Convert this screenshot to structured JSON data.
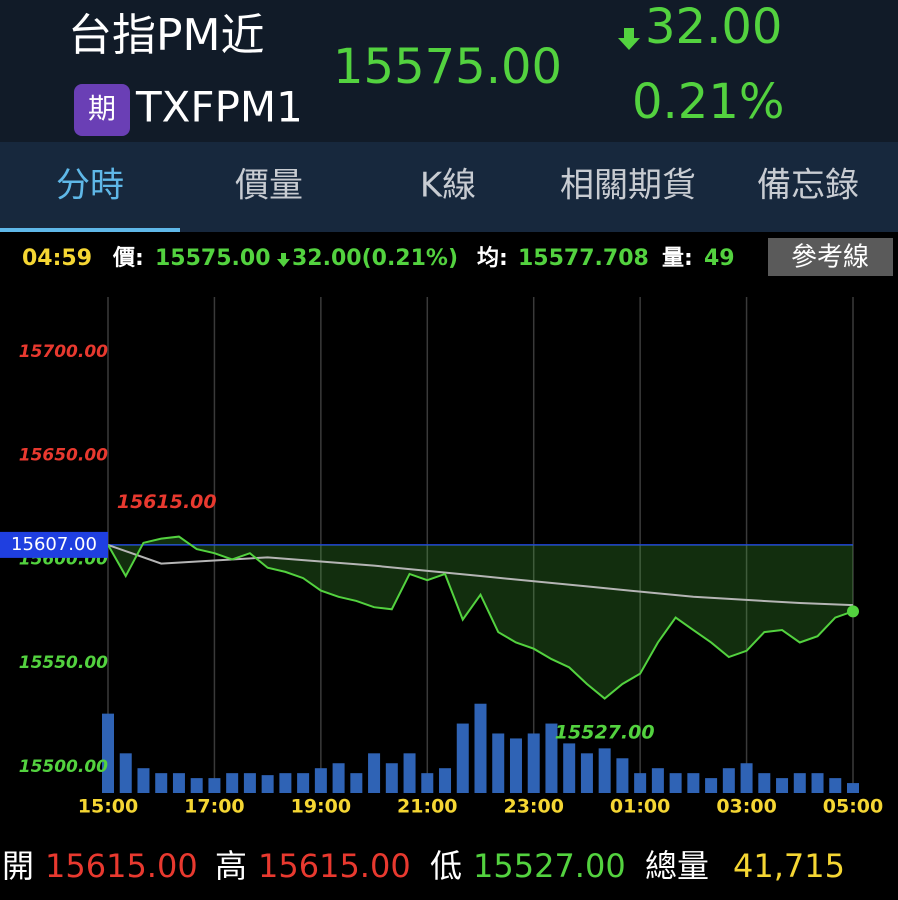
{
  "header": {
    "title": "台指PM近",
    "badge": "期",
    "code": "TXFPM1",
    "price": "15575.00",
    "change": "32.00",
    "change_pct": "0.21%"
  },
  "tabs": [
    "分時",
    "價量",
    "K線",
    "相關期貨",
    "備忘錄"
  ],
  "info_bar": {
    "time": "04:59",
    "price_label": "價:",
    "price": "15575.00",
    "change": "32.00(0.21%)",
    "avg_label": "均:",
    "avg": "15577.708",
    "volume_label": "量:",
    "volume": "49",
    "button": "參考線"
  },
  "chart_data": {
    "type": "line",
    "xlim": [
      0,
      840
    ],
    "xticks": [
      {
        "value": 0,
        "label": "15:00"
      },
      {
        "value": 120,
        "label": "17:00"
      },
      {
        "value": 240,
        "label": "19:00"
      },
      {
        "value": 360,
        "label": "21:00"
      },
      {
        "value": 480,
        "label": "23:00"
      },
      {
        "value": 600,
        "label": "01:00"
      },
      {
        "value": 720,
        "label": "03:00"
      },
      {
        "value": 840,
        "label": "05:00"
      }
    ],
    "ylim": [
      15487.5,
      15726.4
    ],
    "yticks": [
      {
        "value": 15500,
        "label": "15500.00"
      },
      {
        "value": 15550,
        "label": "15550.00"
      },
      {
        "value": 15600,
        "label": "15600.00"
      },
      {
        "value": 15650,
        "label": "15650.00"
      },
      {
        "value": 15700,
        "label": "15700.00"
      }
    ],
    "y2lim": [
      0,
      500
    ],
    "grid": true,
    "reference": {
      "value": 15607,
      "label": "15607.00",
      "color": "#1f3fe0"
    },
    "annotations": [
      {
        "x": 10,
        "value": 15615,
        "label": "15615.00",
        "color": "#e8392f"
      },
      {
        "x": 560,
        "value": 15527,
        "label": "15527.00",
        "color": "#53d23f"
      }
    ],
    "series": [
      {
        "color": "#53d23f",
        "x": [
          0,
          20,
          40,
          60,
          80,
          100,
          120,
          140,
          160,
          180,
          200,
          220,
          240,
          260,
          280,
          300,
          320,
          340,
          360,
          380,
          400,
          420,
          440,
          460,
          480,
          500,
          520,
          540,
          560,
          580,
          600,
          620,
          640,
          660,
          680,
          700,
          720,
          740,
          760,
          780,
          800,
          820,
          840
        ],
        "values": [
          15607,
          15592,
          15608,
          15610,
          15611,
          15605,
          15603,
          15600,
          15603,
          15596,
          15594,
          15591,
          15585,
          15582,
          15580,
          15577,
          15576,
          15593,
          15590,
          15593,
          15571,
          15583,
          15565,
          15560,
          15557,
          15552,
          15548,
          15540,
          15533,
          15540,
          15545,
          15560,
          15572,
          15566,
          15560,
          15553,
          15556,
          15565,
          15566,
          15560,
          15563,
          15572,
          15575
        ]
      },
      {
        "color": "#b5b5b5",
        "x": [
          0,
          60,
          180,
          300,
          420,
          540,
          660,
          780,
          840
        ],
        "values": [
          15607,
          15598,
          15601,
          15597,
          15592,
          15587,
          15582,
          15579,
          15578
        ]
      },
      {
        "type": "bar",
        "axis": "y2",
        "color": "#2f63b5",
        "x": [
          0,
          20,
          40,
          60,
          80,
          100,
          120,
          140,
          160,
          180,
          200,
          220,
          240,
          260,
          280,
          300,
          320,
          340,
          360,
          380,
          400,
          420,
          440,
          460,
          480,
          500,
          520,
          540,
          560,
          580,
          600,
          620,
          640,
          660,
          680,
          700,
          720,
          740,
          760,
          780,
          800,
          820,
          840
        ],
        "values": [
          80,
          40,
          25,
          20,
          20,
          15,
          15,
          20,
          20,
          18,
          20,
          20,
          25,
          30,
          20,
          40,
          30,
          40,
          20,
          25,
          70,
          90,
          60,
          55,
          60,
          70,
          50,
          40,
          45,
          35,
          20,
          25,
          20,
          20,
          15,
          25,
          30,
          20,
          15,
          20,
          20,
          15,
          10
        ]
      }
    ]
  },
  "footer": {
    "open_label": "開",
    "open": "15615.00",
    "high_label": "高",
    "high": "15615.00",
    "low_label": "低",
    "low": "15527.00",
    "total_label": "總量",
    "total": "41,715"
  }
}
